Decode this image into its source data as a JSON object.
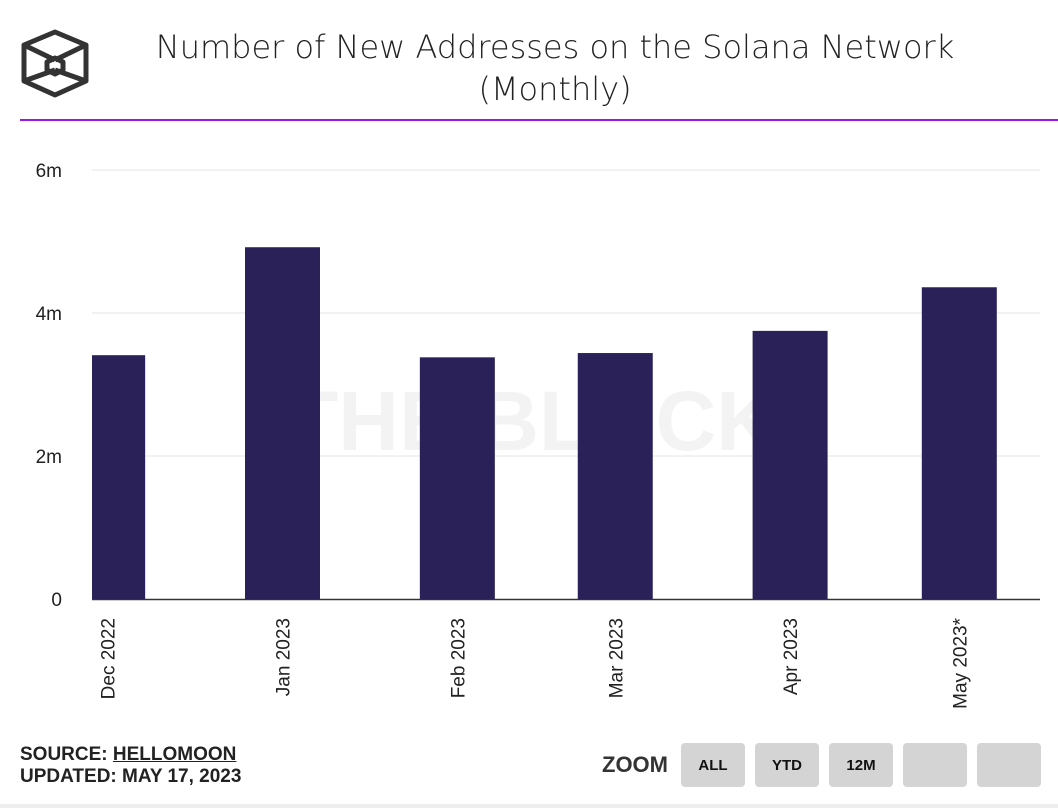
{
  "title_line1": "Number of New Addresses on the Solana Network",
  "title_line2": "(Monthly)",
  "watermark": "THE BLOCK",
  "source_label": "SOURCE:",
  "source_name": "HELLOMOON",
  "updated_label": "UPDATED:",
  "updated_date": "MAY 17, 2023",
  "zoom_label": "ZOOM",
  "zoom_buttons": [
    "ALL",
    "YTD",
    "12M",
    "",
    ""
  ],
  "colors": {
    "bar": "#2a2159",
    "accent": "#9b19e6",
    "grid": "#e6e6e6"
  },
  "chart_data": {
    "type": "bar",
    "title": "Number of New Addresses on the Solana Network (Monthly)",
    "categories": [
      "Dec 2022",
      "Jan 2023",
      "Feb 2023",
      "Mar 2023",
      "Apr 2023",
      "May 2023*"
    ],
    "dates": [
      "2022-12-01",
      "2023-01-01",
      "2023-02-01",
      "2023-03-01",
      "2023-04-01",
      "2023-05-01"
    ],
    "values": [
      3.41,
      4.92,
      3.38,
      3.44,
      3.75,
      4.36
    ],
    "unit": "m",
    "yticks": [
      0,
      2,
      4,
      6
    ],
    "ytick_labels": [
      "0",
      "2m",
      "4m",
      "6m"
    ],
    "ylim": [
      0,
      6
    ],
    "grid": true,
    "xlabel": "",
    "ylabel": ""
  }
}
